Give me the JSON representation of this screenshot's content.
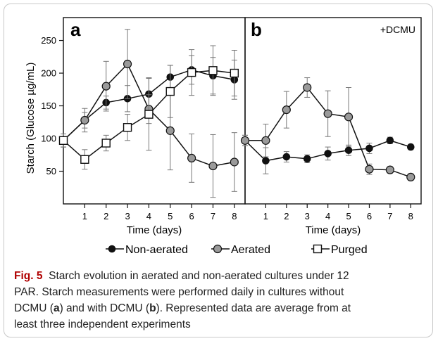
{
  "chart_data": [
    {
      "type": "line",
      "panel_label": "a",
      "ylabel": "Starch (Glucose µg/mL)",
      "xlabel": "Time (days)",
      "x": [
        0,
        1,
        2,
        3,
        4,
        5,
        6,
        7,
        8
      ],
      "x_tick_labels": [
        "1",
        "2",
        "3",
        "4",
        "5",
        "6",
        "7",
        "8"
      ],
      "y_ticks": [
        "50",
        "100",
        "150",
        "200",
        "250"
      ],
      "xlim": [
        0,
        8.5
      ],
      "ylim": [
        0,
        285
      ],
      "series": [
        {
          "name": "Non-aerated",
          "marker": "filled-circle",
          "color": "#000000",
          "values": [
            97,
            128,
            155,
            161,
            168,
            194,
            205,
            196,
            190
          ],
          "errors": [
            10,
            12,
            10,
            20,
            25,
            18,
            22,
            28,
            30
          ]
        },
        {
          "name": "Aerated",
          "marker": "gray-circle",
          "color": "#8c8c8c",
          "values": [
            97,
            128,
            180,
            214,
            145,
            112,
            70,
            58,
            64
          ],
          "errors": [
            10,
            18,
            38,
            53,
            22,
            60,
            37,
            48,
            45
          ]
        },
        {
          "name": "Purged",
          "marker": "open-square",
          "color": "#000000",
          "values": [
            97,
            68,
            93,
            117,
            137,
            172,
            201,
            204,
            200
          ],
          "errors": [
            10,
            15,
            12,
            20,
            55,
            40,
            35,
            38,
            35
          ]
        }
      ]
    },
    {
      "type": "line",
      "panel_label": "b",
      "annotation": "+DCMU",
      "xlabel": "Time (days)",
      "x": [
        0,
        1,
        2,
        3,
        4,
        5,
        6,
        7,
        8
      ],
      "x_tick_labels": [
        "1",
        "2",
        "3",
        "4",
        "5",
        "6",
        "7",
        "8"
      ],
      "xlim": [
        0,
        8.5
      ],
      "ylim": [
        0,
        285
      ],
      "series": [
        {
          "name": "Non-aerated",
          "marker": "filled-circle",
          "color": "#000000",
          "values": [
            97,
            66,
            72,
            69,
            77,
            82,
            85,
            97,
            87
          ],
          "errors": [
            8,
            20,
            8,
            6,
            10,
            8,
            8,
            5,
            4
          ]
        },
        {
          "name": "Aerated",
          "marker": "gray-circle",
          "color": "#8c8c8c",
          "values": [
            97,
            97,
            144,
            178,
            138,
            133,
            53,
            52,
            41
          ],
          "errors": [
            8,
            25,
            28,
            15,
            35,
            45,
            8,
            5,
            5
          ]
        }
      ]
    }
  ],
  "legend": {
    "placement": "bottom",
    "items": [
      {
        "label": "Non-aerated",
        "marker": "filled-circle"
      },
      {
        "label": "Aerated",
        "marker": "gray-circle"
      },
      {
        "label": "Purged",
        "marker": "open-square"
      }
    ]
  },
  "caption": {
    "fig_label": "Fig. 5",
    "line1": "Starch evolution in aerated and non-aerated cultures under 12",
    "line2": "PAR. Starch measurements were performed daily in cultures without",
    "line3_a": "DCMU (",
    "line3_a_bold": "a",
    "line3_b": ") and with DCMU (",
    "line3_b_bold": "b",
    "line3_c": "). Represented data are average from at",
    "line4": "least three independent experiments"
  },
  "colors": {
    "aerated_fill": "#9a9a9a",
    "line_dark": "#111111",
    "frame_border": "#c8c8c8",
    "fig_label": "#b00000"
  }
}
